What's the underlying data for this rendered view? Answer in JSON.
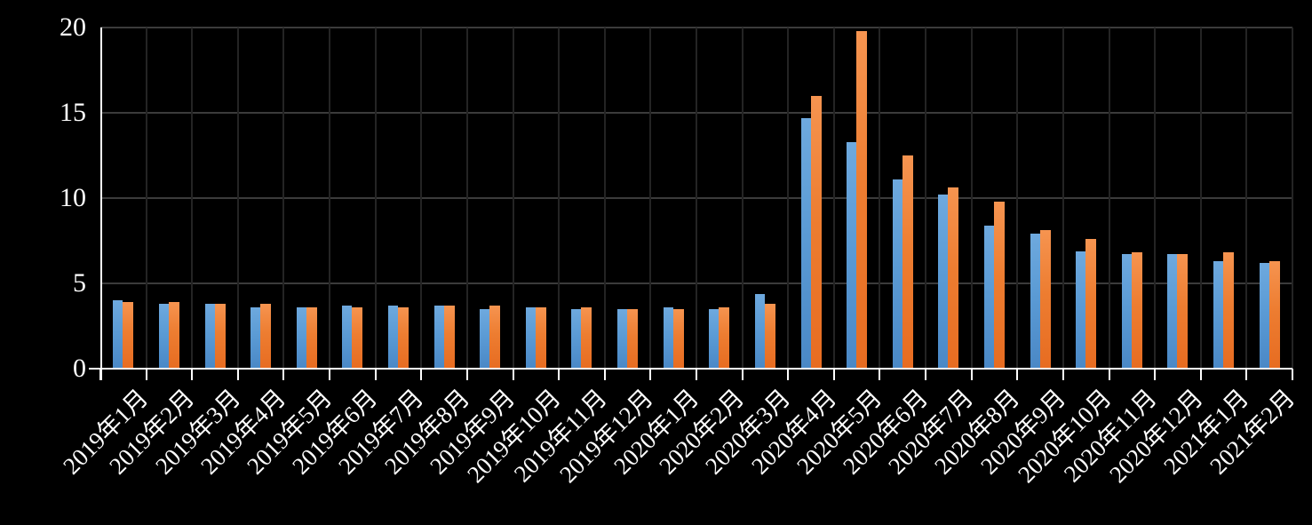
{
  "chart": {
    "background": "#000000",
    "axis_color": "#ffffff",
    "h_grid_color": "#3b3b3b",
    "v_grid_color": "#242424",
    "text_color": "#ffffff"
  },
  "chart_data": {
    "type": "bar",
    "title": "",
    "xlabel": "",
    "ylabel": "",
    "ylim": [
      0,
      20
    ],
    "yticks": [
      0,
      5,
      10,
      15,
      20
    ],
    "grid": true,
    "legend_position": "none",
    "x_label_rotation": -45,
    "categories": [
      "2019年1月",
      "2019年2月",
      "2019年3月",
      "2019年4月",
      "2019年5月",
      "2019年6月",
      "2019年7月",
      "2019年8月",
      "2019年9月",
      "2019年10月",
      "2019年11月",
      "2019年12月",
      "2020年1月",
      "2020年2月",
      "2020年3月",
      "2020年4月",
      "2020年5月",
      "2020年6月",
      "2020年7月",
      "2020年8月",
      "2020年9月",
      "2020年10月",
      "2020年11月",
      "2020年12月",
      "2021年1月",
      "2021年2月"
    ],
    "series": [
      {
        "name": "blue-series",
        "color": "#5b9bd5",
        "values": [
          4.0,
          3.8,
          3.8,
          3.6,
          3.6,
          3.7,
          3.7,
          3.7,
          3.5,
          3.6,
          3.5,
          3.5,
          3.6,
          3.5,
          4.4,
          14.7,
          13.3,
          11.1,
          10.2,
          8.4,
          7.9,
          6.9,
          6.7,
          6.7,
          6.3,
          6.2
        ]
      },
      {
        "name": "orange-series",
        "color": "#ed7d31",
        "values": [
          3.9,
          3.9,
          3.8,
          3.8,
          3.6,
          3.6,
          3.6,
          3.7,
          3.7,
          3.6,
          3.6,
          3.5,
          3.5,
          3.6,
          3.8,
          16.0,
          19.8,
          12.5,
          10.6,
          9.8,
          8.1,
          7.6,
          6.8,
          6.7,
          6.8,
          6.3
        ]
      }
    ]
  }
}
